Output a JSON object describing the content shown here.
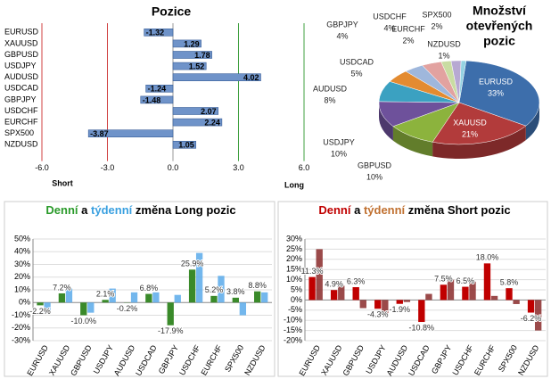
{
  "chart_data": [
    {
      "type": "hbar",
      "title": "Pozice",
      "categories": [
        "EURUSD",
        "XAUUSD",
        "GBPUSD",
        "USDJPY",
        "AUDUSD",
        "USDCAD",
        "GBPJPY",
        "USDCHF",
        "EURCHF",
        "SPX500",
        "NZDUSD"
      ],
      "values": [
        -1.32,
        1.29,
        1.78,
        1.52,
        4.02,
        -1.24,
        -1.48,
        2.07,
        2.24,
        -3.87,
        1.05
      ],
      "value_labels": [
        "-1.32",
        "1.29",
        "1.78",
        "1.52",
        "4.02",
        "-1.24",
        "-1.48",
        "2.07",
        "2.24",
        "-3.87",
        "1.05"
      ],
      "color": "#6f93c9",
      "xlim": [
        -6,
        6
      ],
      "xticks": [
        {
          "value": -6,
          "label": "-6.0"
        },
        {
          "value": -3,
          "label": "-3.0"
        },
        {
          "value": 0,
          "label": "0.0"
        },
        {
          "value": 3,
          "label": "3.0"
        },
        {
          "value": 6,
          "label": "6.0"
        }
      ],
      "annotations": [
        "Short",
        "Long"
      ]
    },
    {
      "type": "pie",
      "title_lines": [
        "Množství",
        "otevřených",
        "pozic"
      ],
      "categories": [
        "EURUSD",
        "XAUUSD",
        "GBPUSD",
        "USDJPY",
        "AUDUSD",
        "USDCAD",
        "GBPJPY",
        "USDCHF",
        "EURCHF",
        "SPX500",
        "NZDUSD"
      ],
      "values": [
        33,
        21,
        10,
        10,
        8,
        5,
        4,
        4,
        2,
        2,
        1
      ],
      "value_labels": [
        "33%",
        "21%",
        "10%",
        "10%",
        "8%",
        "5%",
        "4%",
        "4%",
        "2%",
        "2%",
        "1%"
      ],
      "colors": [
        "#3d6eab",
        "#b23b3b",
        "#8cb33d",
        "#6e519b",
        "#3ba1c1",
        "#e38b31",
        "#9fb7dc",
        "#e2a2a0",
        "#c9dca2",
        "#b7a8d2",
        "#94d2e2"
      ]
    },
    {
      "type": "grouped_bar",
      "title_parts": [
        "Denní",
        "a",
        "týdenní",
        "změna Long pozic"
      ],
      "categories": [
        "EURUSD",
        "XAUUSD",
        "GBPUSD",
        "USDJPY",
        "AUDUSD",
        "USDCAD",
        "GBPJPY",
        "USDCHF",
        "EURCHF",
        "SPX500",
        "NZDUSD"
      ],
      "series": [
        {
          "name": "Denní",
          "color": "#3a8a2a",
          "values": [
            -2.2,
            7.2,
            -10.0,
            2.1,
            -0.2,
            6.8,
            -17.9,
            25.9,
            5.2,
            3.8,
            8.8
          ],
          "value_labels": [
            "-2.2%",
            "7.2%",
            "-10.0%",
            "2.1%",
            "-0.2%",
            "6.8%",
            "-17.9%",
            "25.9%",
            "5.2%",
            "3.8%",
            "8.8%"
          ]
        },
        {
          "name": "týdenní",
          "color": "#5aaaea",
          "values": [
            -8,
            11,
            -8,
            11,
            8,
            8,
            6,
            39,
            21,
            -10,
            8
          ]
        }
      ],
      "ylim": [
        -30,
        50
      ],
      "yticks": [
        {
          "value": -30,
          "label": "-30%"
        },
        {
          "value": -20,
          "label": "-20%"
        },
        {
          "value": -10,
          "label": "-10%"
        },
        {
          "value": 0,
          "label": "0%"
        },
        {
          "value": 10,
          "label": "10%"
        },
        {
          "value": 20,
          "label": "20%"
        },
        {
          "value": 30,
          "label": "30%"
        },
        {
          "value": 40,
          "label": "40%"
        },
        {
          "value": 50,
          "label": "50%"
        }
      ],
      "grid": true
    },
    {
      "type": "grouped_bar",
      "title_parts": [
        "Denní",
        "a",
        "týdenní",
        "změna Short pozic"
      ],
      "categories": [
        "EURUSD",
        "XAUUSD",
        "GBPUSD",
        "USDJPY",
        "AUDUSD",
        "USDCAD",
        "GBPJPY",
        "USDCHF",
        "EURCHF",
        "SPX500",
        "NZDUSD"
      ],
      "series": [
        {
          "name": "Denní",
          "color": "#c00000",
          "values": [
            11.3,
            4.9,
            6.3,
            -4.3,
            -1.9,
            -10.8,
            7.5,
            6.5,
            18.0,
            5.8,
            -6.2
          ],
          "value_labels": [
            "11.3%",
            "4.9%",
            "6.3%",
            "-4.3%",
            "-1.9%",
            "-10.8%",
            "7.5%",
            "6.5%",
            "18.0%",
            "5.8%",
            "-6.2%"
          ]
        },
        {
          "name": "týdenní",
          "color": "#8a2a2a",
          "values": [
            25,
            7,
            -4,
            -7,
            -1,
            3,
            10,
            9,
            2,
            -2,
            -15
          ]
        }
      ],
      "ylim": [
        -20,
        30
      ],
      "yticks": [
        {
          "value": -20,
          "label": "-20%"
        },
        {
          "value": -15,
          "label": "-15%"
        },
        {
          "value": -10,
          "label": "-10%"
        },
        {
          "value": -5,
          "label": "-5%"
        },
        {
          "value": 0,
          "label": "0%"
        },
        {
          "value": 5,
          "label": "5%"
        },
        {
          "value": 10,
          "label": "10%"
        },
        {
          "value": 15,
          "label": "15%"
        },
        {
          "value": 20,
          "label": "20%"
        },
        {
          "value": 25,
          "label": "25%"
        },
        {
          "value": 30,
          "label": "30%"
        }
      ],
      "grid": true
    }
  ]
}
